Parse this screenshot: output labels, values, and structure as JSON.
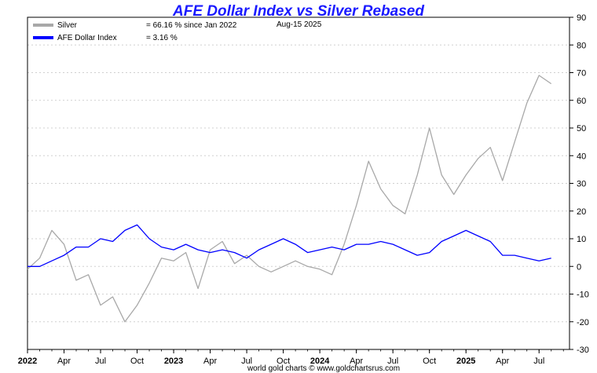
{
  "chart_data": {
    "type": "line",
    "title": "AFE Dollar Index vs Silver Rebased",
    "date_label": "Aug-15  2025",
    "footer": "world gold charts © www.goldchartsrus.com",
    "ylim": [
      -30,
      90
    ],
    "y_ticks": [
      90,
      80,
      70,
      60,
      50,
      40,
      30,
      20,
      10,
      0,
      -10,
      -20,
      -30
    ],
    "y_axis_side": "right",
    "x_ticks": [
      {
        "label": "2022",
        "date": "2022-01"
      },
      {
        "label": "Apr",
        "date": "2022-04"
      },
      {
        "label": "Jul",
        "date": "2022-07"
      },
      {
        "label": "Oct",
        "date": "2022-10"
      },
      {
        "label": "2023",
        "date": "2023-01"
      },
      {
        "label": "Apr",
        "date": "2023-04"
      },
      {
        "label": "Jul",
        "date": "2023-07"
      },
      {
        "label": "Oct",
        "date": "2023-10"
      },
      {
        "label": "2024",
        "date": "2024-01"
      },
      {
        "label": "Apr",
        "date": "2024-04"
      },
      {
        "label": "Jul",
        "date": "2024-07"
      },
      {
        "label": "Oct",
        "date": "2024-10"
      },
      {
        "label": "2025",
        "date": "2025-01"
      },
      {
        "label": "Apr",
        "date": "2025-04"
      },
      {
        "label": "Jul",
        "date": "2025-07"
      }
    ],
    "grid": "horizontal dashed",
    "legend_position": "top-left",
    "series": [
      {
        "name": "Silver",
        "legend_value": "= 66.16 % since Jan 2022",
        "color": "#a8a8a8",
        "points": [
          [
            "2022-01",
            -1
          ],
          [
            "2022-02",
            3
          ],
          [
            "2022-03",
            13
          ],
          [
            "2022-04",
            8
          ],
          [
            "2022-05",
            -5
          ],
          [
            "2022-06",
            -3
          ],
          [
            "2022-07",
            -14
          ],
          [
            "2022-08",
            -11
          ],
          [
            "2022-09",
            -20
          ],
          [
            "2022-10",
            -14
          ],
          [
            "2022-11",
            -6
          ],
          [
            "2022-12",
            3
          ],
          [
            "2023-01",
            2
          ],
          [
            "2023-02",
            5
          ],
          [
            "2023-03",
            -8
          ],
          [
            "2023-04",
            6
          ],
          [
            "2023-05",
            9
          ],
          [
            "2023-06",
            1
          ],
          [
            "2023-07",
            4
          ],
          [
            "2023-08",
            0
          ],
          [
            "2023-09",
            -2
          ],
          [
            "2023-10",
            0
          ],
          [
            "2023-11",
            2
          ],
          [
            "2023-12",
            0
          ],
          [
            "2024-01",
            -1
          ],
          [
            "2024-02",
            -3
          ],
          [
            "2024-03",
            8
          ],
          [
            "2024-04",
            22
          ],
          [
            "2024-05",
            38
          ],
          [
            "2024-06",
            28
          ],
          [
            "2024-07",
            22
          ],
          [
            "2024-08",
            19
          ],
          [
            "2024-09",
            33
          ],
          [
            "2024-10",
            50
          ],
          [
            "2024-11",
            33
          ],
          [
            "2024-12",
            26
          ],
          [
            "2025-01",
            33
          ],
          [
            "2025-02",
            39
          ],
          [
            "2025-03",
            43
          ],
          [
            "2025-04",
            31
          ],
          [
            "2025-05",
            45
          ],
          [
            "2025-06",
            59
          ],
          [
            "2025-07",
            69
          ],
          [
            "2025-08",
            66
          ]
        ]
      },
      {
        "name": "AFE Dollar Index",
        "legend_value": "= 3.16 %",
        "color": "#0000ff",
        "points": [
          [
            "2022-01",
            0
          ],
          [
            "2022-02",
            0
          ],
          [
            "2022-03",
            2
          ],
          [
            "2022-04",
            4
          ],
          [
            "2022-05",
            7
          ],
          [
            "2022-06",
            7
          ],
          [
            "2022-07",
            10
          ],
          [
            "2022-08",
            9
          ],
          [
            "2022-09",
            13
          ],
          [
            "2022-10",
            15
          ],
          [
            "2022-11",
            10
          ],
          [
            "2022-12",
            7
          ],
          [
            "2023-01",
            6
          ],
          [
            "2023-02",
            8
          ],
          [
            "2023-03",
            6
          ],
          [
            "2023-04",
            5
          ],
          [
            "2023-05",
            6
          ],
          [
            "2023-06",
            5
          ],
          [
            "2023-07",
            3
          ],
          [
            "2023-08",
            6
          ],
          [
            "2023-09",
            8
          ],
          [
            "2023-10",
            10
          ],
          [
            "2023-11",
            8
          ],
          [
            "2023-12",
            5
          ],
          [
            "2024-01",
            6
          ],
          [
            "2024-02",
            7
          ],
          [
            "2024-03",
            6
          ],
          [
            "2024-04",
            8
          ],
          [
            "2024-05",
            8
          ],
          [
            "2024-06",
            9
          ],
          [
            "2024-07",
            8
          ],
          [
            "2024-08",
            6
          ],
          [
            "2024-09",
            4
          ],
          [
            "2024-10",
            5
          ],
          [
            "2024-11",
            9
          ],
          [
            "2024-12",
            11
          ],
          [
            "2025-01",
            13
          ],
          [
            "2025-02",
            11
          ],
          [
            "2025-03",
            9
          ],
          [
            "2025-04",
            4
          ],
          [
            "2025-05",
            4
          ],
          [
            "2025-06",
            3
          ],
          [
            "2025-07",
            2
          ],
          [
            "2025-08",
            3
          ]
        ]
      }
    ]
  }
}
